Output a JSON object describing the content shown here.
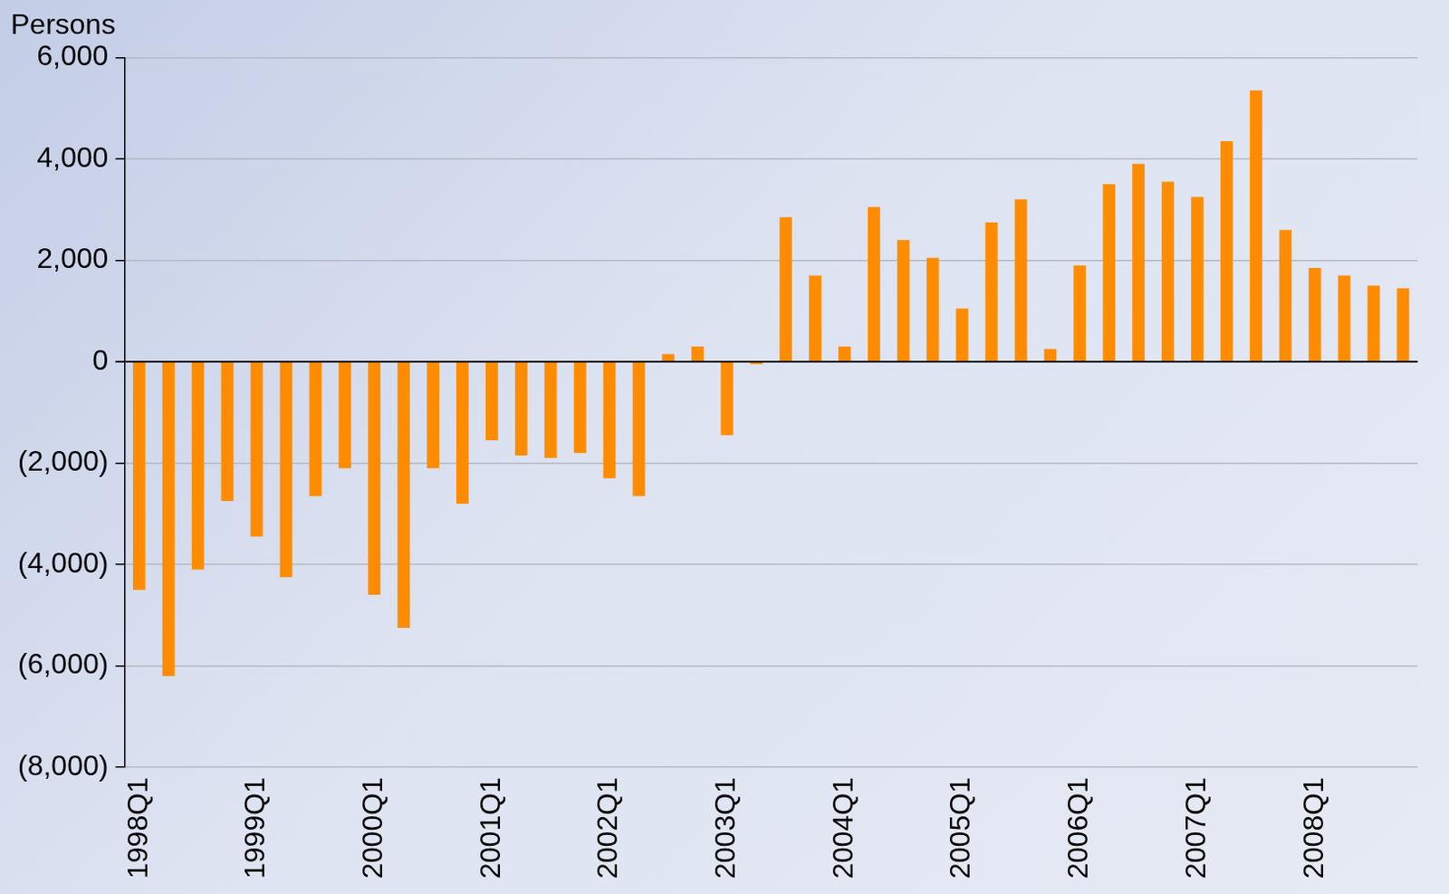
{
  "chart_data": {
    "type": "bar",
    "ylabel": "Persons",
    "categories": [
      "1998Q1",
      null,
      null,
      null,
      "1999Q1",
      null,
      null,
      null,
      "2000Q1",
      null,
      null,
      null,
      "2001Q1",
      null,
      null,
      null,
      "2002Q1",
      null,
      null,
      null,
      "2003Q1",
      null,
      null,
      null,
      "2004Q1",
      null,
      null,
      null,
      "2005Q1",
      null,
      null,
      null,
      "2006Q1",
      null,
      null,
      null,
      "2007Q1",
      null,
      null,
      null,
      "2008Q1",
      null,
      null,
      null
    ],
    "values": [
      -4500,
      -6200,
      -4100,
      -2750,
      -3450,
      -4250,
      -2650,
      -2100,
      -4600,
      -5250,
      -2100,
      -2800,
      -1550,
      -1850,
      -1900,
      -1800,
      -2300,
      -2650,
      150,
      300,
      -1450,
      -50,
      2850,
      1700,
      300,
      3050,
      2400,
      2050,
      1050,
      2750,
      3200,
      250,
      1900,
      3500,
      3900,
      3550,
      3250,
      4350,
      5350,
      2600,
      1850,
      1700,
      1500,
      1450
    ],
    "color": "#ff8c00",
    "ylim": [
      -8000,
      6000
    ],
    "yticks": [
      {
        "value": -8000,
        "label": "(8,000)"
      },
      {
        "value": -6000,
        "label": "(6,000)"
      },
      {
        "value": -4000,
        "label": "(4,000)"
      },
      {
        "value": -2000,
        "label": "(2,000)"
      },
      0,
      {
        "value": 2000,
        "label": "2,000"
      },
      {
        "value": 4000,
        "label": "4,000"
      },
      {
        "value": 6000,
        "label": "6,000"
      }
    ],
    "grid": true
  }
}
